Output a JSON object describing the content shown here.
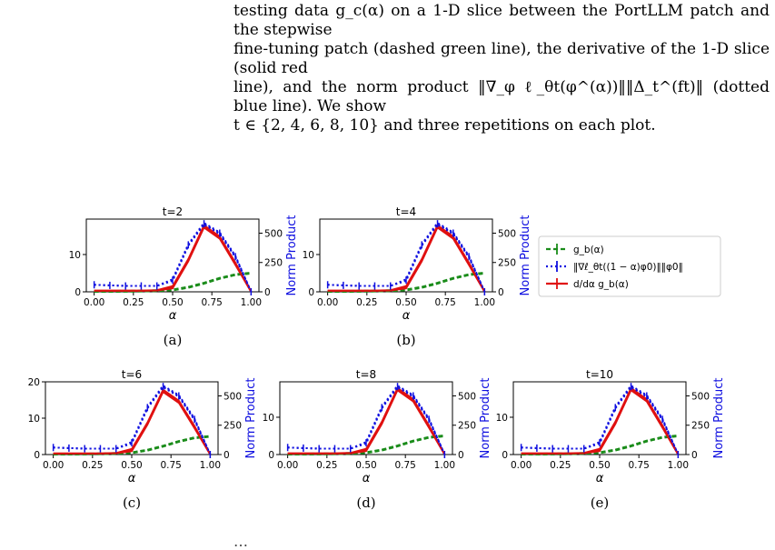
{
  "caption_lines": [
    "testing data g_c(α) on a 1-D slice between the PortLLM patch and the stepwise",
    "fine-tuning patch (dashed green line), the derivative of the 1-D slice (solid red",
    "line), and the norm product ‖∇_φ ℓ_θt(φ^(α))‖‖Δ_t^(ft)‖ (dotted blue line). We show",
    "t ∈ {2, 4, 6, 8, 10} and three repetitions on each plot."
  ],
  "legend": {
    "green": "g_b(α)",
    "blue": "‖∇ℓ_θt((1 − α)φ0)‖‖φ0‖",
    "red": "d/dα g_b(α)"
  },
  "colors": {
    "green": "#1a8c1a",
    "blue": "#1010e0",
    "red": "#e01010"
  },
  "panels": [
    {
      "title": "t=2",
      "sub": "(a)",
      "yticks": [
        "0",
        "10"
      ],
      "ytick_vals": [
        0,
        10
      ],
      "ylim": [
        0,
        19.5
      ]
    },
    {
      "title": "t=4",
      "sub": "(b)",
      "yticks": [
        "0",
        "10"
      ],
      "ytick_vals": [
        0,
        10
      ],
      "ylim": [
        0,
        19.5
      ]
    },
    {
      "title": "t=6",
      "sub": "(c)",
      "yticks": [
        "0",
        "10",
        "20"
      ],
      "ytick_vals": [
        0,
        10,
        20
      ],
      "ylim": [
        0,
        20
      ]
    },
    {
      "title": "t=8",
      "sub": "(d)",
      "yticks": [
        "0",
        "10"
      ],
      "ytick_vals": [
        0,
        10
      ],
      "ylim": [
        0,
        19.5
      ]
    },
    {
      "title": "t=10",
      "sub": "(e)",
      "yticks": [
        "0",
        "10"
      ],
      "ytick_vals": [
        0,
        10
      ],
      "ylim": [
        0,
        19.5
      ]
    }
  ],
  "xticks": [
    "0.00",
    "0.25",
    "0.50",
    "0.75",
    "1.00"
  ],
  "xlabel": "α",
  "y2label": "Norm Product",
  "y2ticks": [
    "0",
    "250",
    "500"
  ],
  "chart_data": {
    "type": "line",
    "x": [
      0,
      0.1,
      0.2,
      0.3,
      0.4,
      0.5,
      0.6,
      0.7,
      0.8,
      0.9,
      1.0
    ],
    "series": [
      {
        "name": "g_b(α)",
        "axis": "left",
        "values": [
          0.1,
          0.1,
          0.15,
          0.2,
          0.3,
          0.5,
          1.2,
          2.3,
          3.6,
          4.6,
          5.0
        ]
      },
      {
        "name": "d/dα g_b(α)",
        "axis": "left",
        "values": [
          0.3,
          0.3,
          0.3,
          0.3,
          0.4,
          1.2,
          8.5,
          17.5,
          14.5,
          7.5,
          0.0
        ]
      },
      {
        "name": "‖∇ℓ_θt((1 − α)φ0)‖‖φ0‖",
        "axis": "right",
        "values": [
          60,
          55,
          50,
          50,
          50,
          100,
          400,
          580,
          500,
          300,
          0
        ]
      }
    ],
    "y2lim": [
      0,
      620
    ],
    "xlim": [
      -0.05,
      1.05
    ]
  },
  "bottom_fragment": "…"
}
